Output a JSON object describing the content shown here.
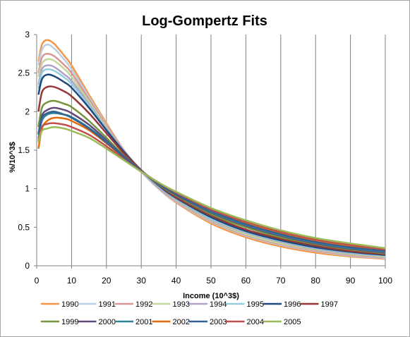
{
  "chart_data": {
    "type": "line",
    "title": "Log-Gompertz Fits",
    "xlabel": "Income (10^3$)",
    "ylabel": "%/10^3$",
    "xlim": [
      0,
      100
    ],
    "ylim": [
      0,
      3
    ],
    "xticks": [
      0,
      10,
      20,
      30,
      40,
      50,
      60,
      70,
      80,
      90,
      100
    ],
    "yticks": [
      0,
      0.5,
      1,
      1.5,
      2,
      2.5,
      3
    ],
    "grid": "vertical major gridlines",
    "legend": "bottom",
    "series": [
      {
        "name": "1990",
        "color": "#f79646",
        "x": [
          0.5,
          1.5,
          3,
          5,
          8,
          10,
          15,
          20,
          25,
          30,
          35,
          40,
          50,
          60,
          70,
          80,
          90,
          100
        ],
        "y": [
          2.65,
          2.87,
          2.93,
          2.88,
          2.72,
          2.6,
          2.22,
          1.85,
          1.5,
          1.22,
          1.0,
          0.82,
          0.55,
          0.37,
          0.25,
          0.17,
          0.12,
          0.09
        ]
      },
      {
        "name": "1991",
        "color": "#b9cde5",
        "x": [
          0.5,
          1.5,
          3,
          5,
          8,
          10,
          15,
          20,
          25,
          30,
          35,
          40,
          50,
          60,
          70,
          80,
          90,
          100
        ],
        "y": [
          2.6,
          2.8,
          2.87,
          2.82,
          2.67,
          2.55,
          2.19,
          1.83,
          1.5,
          1.22,
          1.0,
          0.83,
          0.57,
          0.39,
          0.27,
          0.19,
          0.13,
          0.1
        ]
      },
      {
        "name": "1992",
        "color": "#d99694",
        "x": [
          0.5,
          1.5,
          3,
          5,
          8,
          10,
          15,
          20,
          25,
          30,
          35,
          40,
          50,
          60,
          70,
          80,
          90,
          100
        ],
        "y": [
          2.5,
          2.7,
          2.75,
          2.72,
          2.6,
          2.5,
          2.16,
          1.82,
          1.5,
          1.23,
          1.01,
          0.84,
          0.58,
          0.4,
          0.28,
          0.2,
          0.14,
          0.11
        ]
      },
      {
        "name": "1993",
        "color": "#c3d69b",
        "x": [
          0.5,
          1.5,
          3,
          5,
          8,
          10,
          15,
          20,
          25,
          30,
          35,
          40,
          50,
          60,
          70,
          80,
          90,
          100
        ],
        "y": [
          2.45,
          2.62,
          2.68,
          2.66,
          2.55,
          2.45,
          2.13,
          1.8,
          1.49,
          1.23,
          1.02,
          0.85,
          0.59,
          0.41,
          0.29,
          0.21,
          0.15,
          0.12
        ]
      },
      {
        "name": "1994",
        "color": "#b3a2c7",
        "x": [
          0.5,
          1.5,
          3,
          5,
          8,
          10,
          15,
          20,
          25,
          30,
          35,
          40,
          50,
          60,
          70,
          80,
          90,
          100
        ],
        "y": [
          2.35,
          2.55,
          2.6,
          2.58,
          2.48,
          2.4,
          2.1,
          1.78,
          1.49,
          1.23,
          1.02,
          0.86,
          0.6,
          0.43,
          0.31,
          0.22,
          0.16,
          0.13
        ]
      },
      {
        "name": "1995",
        "color": "#93cddd",
        "x": [
          0.5,
          1.5,
          3,
          5,
          8,
          10,
          15,
          20,
          25,
          30,
          35,
          40,
          50,
          60,
          70,
          80,
          90,
          100
        ],
        "y": [
          2.3,
          2.5,
          2.55,
          2.53,
          2.44,
          2.36,
          2.08,
          1.77,
          1.48,
          1.23,
          1.03,
          0.87,
          0.61,
          0.44,
          0.32,
          0.23,
          0.17,
          0.13
        ]
      },
      {
        "name": "1996",
        "color": "#1f497d",
        "x": [
          0.5,
          1.5,
          3,
          5,
          8,
          10,
          15,
          20,
          25,
          30,
          35,
          40,
          50,
          60,
          70,
          80,
          90,
          100
        ],
        "y": [
          2.22,
          2.42,
          2.48,
          2.46,
          2.38,
          2.31,
          2.05,
          1.76,
          1.48,
          1.24,
          1.04,
          0.88,
          0.63,
          0.45,
          0.33,
          0.24,
          0.18,
          0.14
        ]
      },
      {
        "name": "1997",
        "color": "#953735",
        "x": [
          0.5,
          1.5,
          3,
          5,
          8,
          10,
          15,
          20,
          25,
          30,
          35,
          40,
          50,
          60,
          70,
          80,
          90,
          100
        ],
        "y": [
          2.0,
          2.25,
          2.32,
          2.32,
          2.26,
          2.2,
          1.98,
          1.72,
          1.46,
          1.24,
          1.05,
          0.89,
          0.65,
          0.47,
          0.35,
          0.26,
          0.19,
          0.15
        ]
      },
      {
        "name": "1999",
        "color": "#77933c",
        "x": [
          0.5,
          1.5,
          3,
          5,
          8,
          10,
          15,
          20,
          25,
          30,
          35,
          40,
          50,
          60,
          70,
          80,
          90,
          100
        ],
        "y": [
          1.8,
          2.05,
          2.12,
          2.14,
          2.1,
          2.06,
          1.88,
          1.66,
          1.43,
          1.23,
          1.05,
          0.91,
          0.67,
          0.5,
          0.37,
          0.28,
          0.21,
          0.16
        ]
      },
      {
        "name": "2000",
        "color": "#604a7b",
        "x": [
          0.5,
          1.5,
          3,
          5,
          8,
          10,
          15,
          20,
          25,
          30,
          35,
          40,
          50,
          60,
          70,
          80,
          90,
          100
        ],
        "y": [
          1.7,
          1.95,
          2.02,
          2.05,
          2.02,
          1.98,
          1.83,
          1.63,
          1.42,
          1.23,
          1.06,
          0.92,
          0.69,
          0.52,
          0.39,
          0.29,
          0.22,
          0.17
        ]
      },
      {
        "name": "2001",
        "color": "#31859c",
        "x": [
          0.5,
          1.5,
          3,
          5,
          8,
          10,
          15,
          20,
          25,
          30,
          35,
          40,
          50,
          60,
          70,
          80,
          90,
          100
        ],
        "y": [
          1.65,
          1.88,
          1.96,
          1.98,
          1.96,
          1.93,
          1.79,
          1.61,
          1.41,
          1.23,
          1.07,
          0.93,
          0.7,
          0.53,
          0.4,
          0.3,
          0.23,
          0.18
        ]
      },
      {
        "name": "2002",
        "color": "#e46c0a",
        "x": [
          0.5,
          1.5,
          3,
          5,
          8,
          10,
          15,
          20,
          25,
          30,
          35,
          40,
          50,
          60,
          70,
          80,
          90,
          100
        ],
        "y": [
          1.52,
          1.78,
          1.88,
          1.92,
          1.91,
          1.88,
          1.76,
          1.59,
          1.4,
          1.23,
          1.07,
          0.94,
          0.72,
          0.55,
          0.42,
          0.32,
          0.25,
          0.19
        ]
      },
      {
        "name": "2003",
        "color": "#376092",
        "x": [
          0.5,
          1.5,
          3,
          5,
          8,
          10,
          15,
          20,
          25,
          30,
          35,
          40,
          50,
          60,
          70,
          80,
          90,
          100
        ],
        "y": [
          1.72,
          1.92,
          1.98,
          2.0,
          1.96,
          1.92,
          1.78,
          1.6,
          1.41,
          1.23,
          1.07,
          0.93,
          0.71,
          0.54,
          0.41,
          0.31,
          0.24,
          0.19
        ]
      },
      {
        "name": "2004",
        "color": "#c0504d",
        "x": [
          0.5,
          1.5,
          3,
          5,
          8,
          10,
          15,
          20,
          25,
          30,
          35,
          40,
          50,
          60,
          70,
          80,
          90,
          100
        ],
        "y": [
          1.62,
          1.8,
          1.84,
          1.85,
          1.83,
          1.8,
          1.7,
          1.55,
          1.38,
          1.22,
          1.08,
          0.95,
          0.73,
          0.57,
          0.44,
          0.34,
          0.27,
          0.21
        ]
      },
      {
        "name": "2005",
        "color": "#9bbb59",
        "x": [
          0.5,
          1.5,
          3,
          5,
          8,
          10,
          15,
          20,
          25,
          30,
          35,
          40,
          50,
          60,
          70,
          80,
          90,
          100
        ],
        "y": [
          1.6,
          1.75,
          1.78,
          1.8,
          1.78,
          1.75,
          1.66,
          1.52,
          1.37,
          1.22,
          1.08,
          0.96,
          0.75,
          0.59,
          0.46,
          0.36,
          0.29,
          0.23
        ]
      }
    ]
  }
}
